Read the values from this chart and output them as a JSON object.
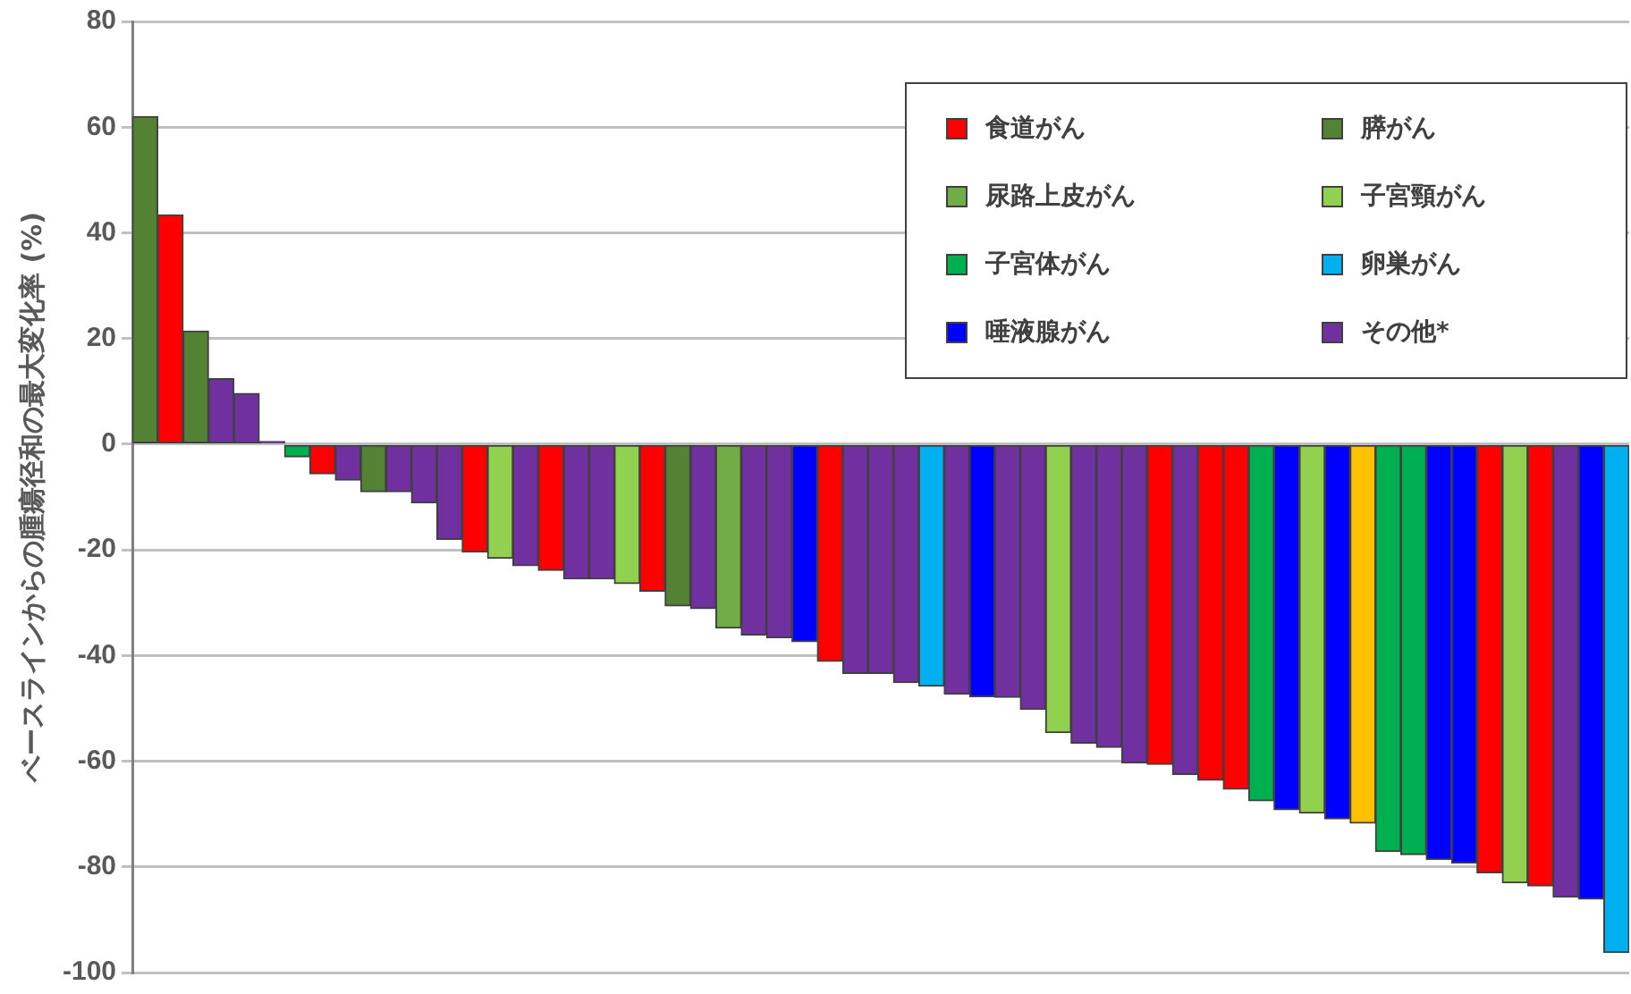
{
  "chart_data": {
    "type": "bar",
    "stacked": true,
    "ylabel": "ベースラインからの腫瘍径和の最大変化率 (%)",
    "categories": [
      null,
      null,
      null,
      null,
      null,
      null,
      null,
      null,
      null,
      null,
      null,
      null,
      null,
      null,
      null,
      null,
      null,
      null,
      null,
      null,
      null,
      null,
      null,
      null,
      null,
      null,
      null,
      null,
      null,
      null,
      null,
      null,
      null,
      null,
      null,
      null,
      null,
      null,
      null,
      null,
      null,
      null,
      null,
      null,
      null,
      null,
      null,
      null,
      null,
      null,
      null,
      null,
      null,
      null,
      null,
      null,
      null,
      null,
      null
    ],
    "series": [
      {
        "name": "食道がん",
        "color": "#ff0000",
        "values": [
          null,
          43.4,
          null,
          null,
          null,
          null,
          null,
          -5.6,
          null,
          null,
          null,
          null,
          null,
          -20.4,
          null,
          null,
          -23.9,
          null,
          null,
          null,
          -27.8,
          null,
          null,
          null,
          null,
          null,
          null,
          -41.1,
          null,
          null,
          null,
          null,
          null,
          null,
          null,
          null,
          null,
          null,
          null,
          null,
          -60.6,
          null,
          -63.6,
          -65.3,
          null,
          null,
          null,
          null,
          null,
          null,
          null,
          null,
          null,
          -81.1,
          null,
          -83.6,
          null,
          null,
          null
        ]
      },
      {
        "name": "膵がん",
        "color": "#548235",
        "values": [
          62,
          null,
          21.4,
          null,
          null,
          null,
          null,
          null,
          null,
          -9.0,
          null,
          null,
          null,
          null,
          null,
          null,
          null,
          null,
          null,
          null,
          null,
          -30.6,
          null,
          null,
          null,
          null,
          null,
          null,
          null,
          null,
          null,
          null,
          null,
          null,
          null,
          null,
          null,
          null,
          null,
          null,
          null,
          null,
          null,
          null,
          null,
          null,
          null,
          null,
          null,
          null,
          null,
          null,
          null,
          null,
          null,
          null,
          null,
          null,
          null
        ]
      },
      {
        "name": "尿路上皮がん",
        "color": "#70ad47",
        "values": [
          null,
          null,
          null,
          null,
          null,
          null,
          null,
          null,
          null,
          null,
          null,
          null,
          null,
          null,
          null,
          null,
          null,
          null,
          null,
          null,
          null,
          null,
          null,
          -34.8,
          null,
          null,
          null,
          null,
          null,
          null,
          null,
          null,
          null,
          null,
          null,
          null,
          null,
          null,
          null,
          null,
          null,
          null,
          null,
          null,
          null,
          null,
          null,
          null,
          null,
          null,
          null,
          null,
          null,
          null,
          null,
          null,
          null,
          null,
          null
        ]
      },
      {
        "name": "子宮頸がん",
        "color": "#92d050",
        "values": [
          null,
          null,
          null,
          null,
          null,
          null,
          null,
          null,
          null,
          null,
          null,
          null,
          null,
          null,
          -21.6,
          null,
          null,
          null,
          null,
          -26.4,
          null,
          null,
          null,
          null,
          null,
          null,
          null,
          null,
          null,
          null,
          null,
          null,
          null,
          null,
          null,
          null,
          -54.6,
          null,
          null,
          null,
          null,
          null,
          null,
          null,
          null,
          null,
          -69.8,
          null,
          null,
          null,
          null,
          null,
          null,
          null,
          -83.0,
          null,
          null,
          null,
          null
        ]
      },
      {
        "name": "子宮体がん",
        "color": "#00b050",
        "values": [
          null,
          null,
          null,
          null,
          null,
          null,
          -2.4,
          null,
          null,
          null,
          null,
          null,
          null,
          null,
          null,
          null,
          null,
          null,
          null,
          null,
          null,
          null,
          null,
          null,
          null,
          null,
          null,
          null,
          null,
          null,
          null,
          null,
          null,
          null,
          null,
          null,
          null,
          null,
          null,
          null,
          null,
          null,
          null,
          null,
          -67.5,
          null,
          null,
          null,
          null,
          -77.1,
          -77.7,
          null,
          null,
          null,
          null,
          null,
          null,
          null,
          null
        ]
      },
      {
        "name": "卵巣がん",
        "color": "#00b0f0",
        "values": [
          null,
          null,
          null,
          null,
          null,
          null,
          null,
          null,
          null,
          null,
          null,
          null,
          null,
          null,
          null,
          null,
          null,
          null,
          null,
          null,
          null,
          null,
          null,
          null,
          null,
          null,
          null,
          null,
          null,
          null,
          null,
          -45.8,
          null,
          null,
          null,
          null,
          null,
          null,
          null,
          null,
          null,
          null,
          null,
          null,
          null,
          null,
          null,
          null,
          null,
          null,
          null,
          null,
          null,
          null,
          null,
          null,
          null,
          null,
          -96.2
        ]
      },
      {
        "name": "唾液腺がん",
        "color": "#0000ff",
        "values": [
          null,
          null,
          null,
          null,
          null,
          null,
          null,
          null,
          null,
          null,
          null,
          null,
          null,
          null,
          null,
          null,
          null,
          null,
          null,
          null,
          null,
          null,
          null,
          null,
          null,
          null,
          -37.4,
          null,
          null,
          null,
          null,
          null,
          null,
          -47.8,
          null,
          null,
          null,
          null,
          null,
          null,
          null,
          null,
          null,
          null,
          null,
          -69.2,
          null,
          -70.9,
          null,
          null,
          null,
          -78.6,
          -79.3,
          null,
          null,
          null,
          null,
          -86.1,
          null
        ]
      },
      {
        "name": "その他*",
        "color": "#7030a0",
        "values": [
          null,
          null,
          null,
          12.4,
          9.6,
          0.5,
          null,
          null,
          -6.8,
          null,
          -9.0,
          -11.1,
          -18.0,
          null,
          null,
          -23.0,
          null,
          -25.5,
          -25.5,
          null,
          null,
          null,
          -31.1,
          null,
          -36.1,
          -36.6,
          null,
          null,
          -43.4,
          -43.4,
          -45.1,
          null,
          -47.3,
          null,
          -47.9,
          -50.2,
          null,
          -56.6,
          -57.4,
          -60.3,
          null,
          -62.5,
          null,
          null,
          null,
          null,
          null,
          null,
          null,
          null,
          null,
          null,
          null,
          null,
          null,
          null,
          -85.7,
          null,
          null
        ]
      },
      {
        "color": "#ffc000",
        "values": [
          null,
          null,
          null,
          null,
          null,
          null,
          null,
          null,
          null,
          null,
          null,
          null,
          null,
          null,
          null,
          null,
          null,
          null,
          null,
          null,
          null,
          null,
          null,
          null,
          null,
          null,
          null,
          null,
          null,
          null,
          null,
          null,
          null,
          null,
          null,
          null,
          null,
          null,
          null,
          null,
          null,
          null,
          null,
          null,
          null,
          null,
          null,
          null,
          -71.7,
          null,
          null,
          null,
          null,
          null,
          null,
          null,
          null,
          null,
          null
        ]
      }
    ],
    "ylim": [
      -100,
      80
    ],
    "yticks": [
      -100,
      -80,
      -60,
      -40,
      -20,
      0,
      20,
      40,
      60,
      80
    ],
    "grid": "y",
    "legend": "top right",
    "tick_labels": "y"
  }
}
